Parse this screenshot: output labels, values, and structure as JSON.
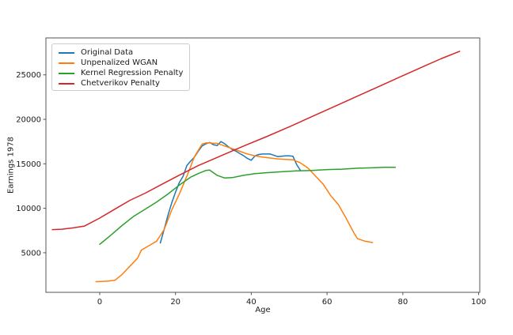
{
  "chart_data": {
    "type": "line",
    "title": "",
    "xlabel": "Age",
    "ylabel": "Earnings 1978",
    "xlim": [
      -14.2,
      100.3
    ],
    "ylim": [
      550,
      29150
    ],
    "x_ticks": [
      0,
      20,
      40,
      60,
      80,
      100
    ],
    "y_ticks": [
      5000,
      10000,
      15000,
      20000,
      25000
    ],
    "grid": false,
    "legend_position": "upper left",
    "series": [
      {
        "name": "Original Data",
        "color": "#1f77b4",
        "points": [
          [
            16,
            6100
          ],
          [
            17,
            7600
          ],
          [
            18,
            9200
          ],
          [
            19,
            10600
          ],
          [
            20,
            11800
          ],
          [
            21,
            12900
          ],
          [
            22,
            13600
          ],
          [
            23,
            14800
          ],
          [
            24,
            15300
          ],
          [
            25,
            15750
          ],
          [
            26,
            16400
          ],
          [
            27,
            17000
          ],
          [
            28,
            17250
          ],
          [
            29,
            17400
          ],
          [
            30,
            17150
          ],
          [
            31,
            17050
          ],
          [
            32,
            17500
          ],
          [
            33,
            17250
          ],
          [
            34,
            16900
          ],
          [
            35,
            16600
          ],
          [
            36,
            16400
          ],
          [
            37,
            16150
          ],
          [
            38,
            15900
          ],
          [
            39,
            15600
          ],
          [
            40,
            15400
          ],
          [
            41,
            15900
          ],
          [
            42,
            16050
          ],
          [
            43,
            16100
          ],
          [
            44,
            16100
          ],
          [
            45,
            16100
          ],
          [
            46,
            15950
          ],
          [
            47,
            15800
          ],
          [
            48,
            15850
          ],
          [
            49,
            15900
          ],
          [
            50,
            15900
          ],
          [
            51,
            15850
          ],
          [
            52,
            14900
          ],
          [
            53,
            14250
          ]
        ]
      },
      {
        "name": "Unpenalized WGAN",
        "color": "#ff7f0e",
        "points": [
          [
            -1,
            1750
          ],
          [
            2,
            1800
          ],
          [
            4,
            1900
          ],
          [
            6,
            2600
          ],
          [
            8,
            3500
          ],
          [
            10,
            4400
          ],
          [
            11,
            5300
          ],
          [
            13,
            5800
          ],
          [
            15,
            6300
          ],
          [
            17,
            7600
          ],
          [
            19,
            9800
          ],
          [
            21,
            11600
          ],
          [
            23,
            13600
          ],
          [
            25,
            15800
          ],
          [
            26,
            16500
          ],
          [
            27,
            17200
          ],
          [
            28,
            17350
          ],
          [
            29,
            17350
          ],
          [
            30,
            17300
          ],
          [
            31,
            17300
          ],
          [
            33,
            17000
          ],
          [
            35,
            16700
          ],
          [
            37,
            16400
          ],
          [
            39,
            16100
          ],
          [
            41,
            15900
          ],
          [
            43,
            15750
          ],
          [
            45,
            15650
          ],
          [
            47,
            15550
          ],
          [
            49,
            15500
          ],
          [
            51,
            15450
          ],
          [
            53,
            15100
          ],
          [
            55,
            14500
          ],
          [
            57,
            13600
          ],
          [
            59,
            12700
          ],
          [
            61,
            11400
          ],
          [
            63,
            10400
          ],
          [
            65,
            8900
          ],
          [
            67,
            7300
          ],
          [
            68,
            6600
          ],
          [
            70,
            6300
          ],
          [
            72,
            6150
          ]
        ]
      },
      {
        "name": "Kernel Regression Penalty",
        "color": "#2ca02c",
        "points": [
          [
            0,
            5950
          ],
          [
            3,
            7000
          ],
          [
            6,
            8100
          ],
          [
            9,
            9100
          ],
          [
            12,
            9900
          ],
          [
            15,
            10700
          ],
          [
            18,
            11600
          ],
          [
            21,
            12600
          ],
          [
            24,
            13500
          ],
          [
            26,
            13900
          ],
          [
            28,
            14250
          ],
          [
            29,
            14300
          ],
          [
            31,
            13700
          ],
          [
            33,
            13400
          ],
          [
            35,
            13450
          ],
          [
            38,
            13700
          ],
          [
            41,
            13900
          ],
          [
            44,
            14000
          ],
          [
            48,
            14100
          ],
          [
            52,
            14200
          ],
          [
            56,
            14250
          ],
          [
            60,
            14350
          ],
          [
            64,
            14400
          ],
          [
            68,
            14500
          ],
          [
            72,
            14550
          ],
          [
            75,
            14600
          ],
          [
            78,
            14600
          ]
        ]
      },
      {
        "name": "Chetverikov Penalty",
        "color": "#d62728",
        "points": [
          [
            -12.5,
            7600
          ],
          [
            -10,
            7650
          ],
          [
            -7,
            7800
          ],
          [
            -4,
            8000
          ],
          [
            0,
            8900
          ],
          [
            4,
            9900
          ],
          [
            8,
            10900
          ],
          [
            12,
            11700
          ],
          [
            16,
            12600
          ],
          [
            20,
            13500
          ],
          [
            26,
            14800
          ],
          [
            32,
            15900
          ],
          [
            38,
            17000
          ],
          [
            44,
            18050
          ],
          [
            50,
            19150
          ],
          [
            56,
            20300
          ],
          [
            62,
            21450
          ],
          [
            68,
            22600
          ],
          [
            74,
            23750
          ],
          [
            80,
            24900
          ],
          [
            86,
            26050
          ],
          [
            90,
            26800
          ],
          [
            95,
            27650
          ]
        ]
      }
    ]
  }
}
